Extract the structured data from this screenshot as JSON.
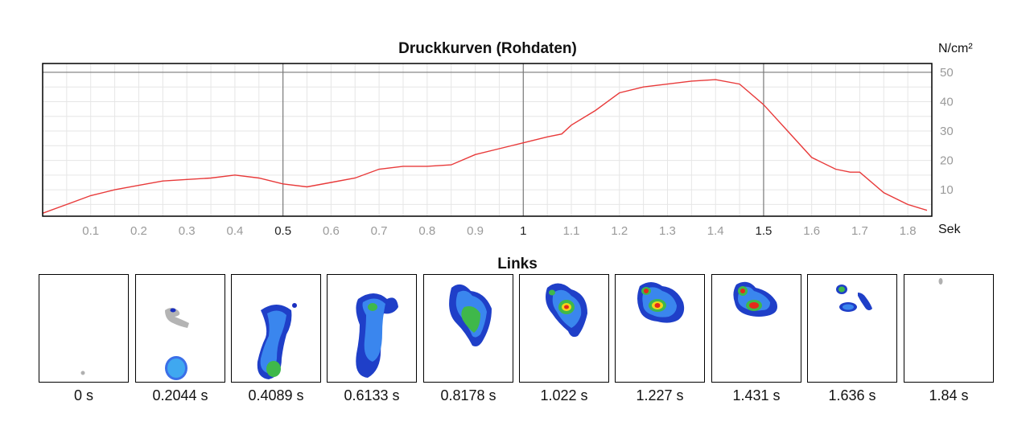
{
  "chart_data": {
    "type": "line",
    "title": "Druckkurven (Rohdaten)",
    "ylabel_unit": "N/cm²",
    "xlabel_unit": "Sek",
    "xlim": [
      0,
      1.85
    ],
    "ylim": [
      1,
      53
    ],
    "x_ticks": [
      "0.1",
      "0.2",
      "0.3",
      "0.4",
      "0.5",
      "0.6",
      "0.7",
      "0.8",
      "0.9",
      "1",
      "1.1",
      "1.2",
      "1.3",
      "1.4",
      "1.5",
      "1.6",
      "1.7",
      "1.8"
    ],
    "x_major_ticks": [
      "0.5",
      "1",
      "1.5"
    ],
    "y_ticks": [
      "10",
      "20",
      "30",
      "40",
      "50"
    ],
    "grid": true,
    "line_color": "#e83a3a",
    "series": [
      {
        "x": [
          0.0,
          0.05,
          0.1,
          0.15,
          0.2,
          0.25,
          0.3,
          0.35,
          0.4,
          0.45,
          0.5,
          0.55,
          0.6,
          0.65,
          0.7,
          0.75,
          0.8,
          0.85,
          0.9,
          0.95,
          1.0,
          1.05,
          1.08,
          1.1,
          1.15,
          1.2,
          1.25,
          1.3,
          1.35,
          1.4,
          1.45,
          1.5,
          1.55,
          1.6,
          1.65,
          1.68,
          1.7,
          1.75,
          1.8,
          1.84
        ],
        "y": [
          2,
          5,
          8,
          10,
          11.5,
          13,
          13.5,
          14,
          15,
          14,
          12,
          11,
          12.5,
          14,
          17,
          18,
          18,
          18.5,
          22,
          24,
          26,
          28,
          29,
          32,
          37,
          43,
          45,
          46,
          47,
          47.5,
          46,
          39,
          30,
          21,
          17,
          16,
          16,
          9,
          5,
          3
        ]
      }
    ]
  },
  "section_title": "Links",
  "frames": [
    {
      "label": "0 s"
    },
    {
      "label": "0.2044 s"
    },
    {
      "label": "0.4089 s"
    },
    {
      "label": "0.6133 s"
    },
    {
      "label": "0.8178 s"
    },
    {
      "label": "1.022 s"
    },
    {
      "label": "1.227 s"
    },
    {
      "label": "1.431 s"
    },
    {
      "label": "1.636 s"
    },
    {
      "label": "1.84 s"
    }
  ]
}
